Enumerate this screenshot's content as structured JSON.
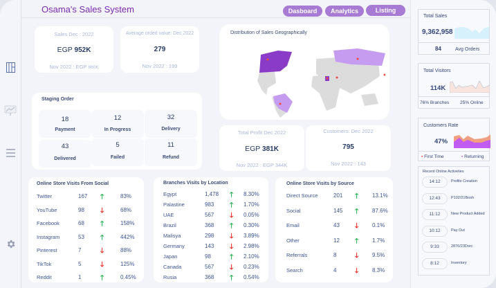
{
  "app": {
    "title": "Osama's Sales System"
  },
  "nav": [
    {
      "label": "Dasboard"
    },
    {
      "label": "Analytics"
    },
    {
      "label": "Listing"
    }
  ],
  "sidebar": {
    "icons": [
      "layout-icon",
      "presentation-chart-icon",
      "menu-icon",
      "gear-icon"
    ]
  },
  "sales": {
    "label": "Sales Dec : 2022",
    "currency": "EGP",
    "value": "952K",
    "prev": "Nov 2022 : EGP",
    "prev_value": "860K"
  },
  "avg_order": {
    "label": "Average orded value: Dec 2022",
    "value": "279",
    "prev": "Nov 2022 :  199"
  },
  "staging": {
    "title": "Staging Order",
    "items": [
      {
        "value": "18",
        "label": "Payment"
      },
      {
        "value": "12",
        "label": "In Progress"
      },
      {
        "value": "32",
        "label": "Delivery"
      },
      {
        "value": "43",
        "label": "Delivered"
      },
      {
        "value": "5",
        "label": "Failed"
      },
      {
        "value": "11",
        "label": "Refund"
      }
    ]
  },
  "map": {
    "title": "Distribution of Sales Geographically",
    "colors": {
      "high": "#8a3cc8",
      "mid": "#c59cf0",
      "base": "#dcdcdc",
      "marker": "#f04a3a"
    }
  },
  "profit": {
    "label": "Total Profit Dec 2022",
    "currency": "EGP",
    "value": "381K",
    "prev": "Nov 2022 : EGP  344K"
  },
  "customers": {
    "label": "Customers: Dec 2022",
    "value": "795",
    "prev": "Nov 2022 : 143"
  },
  "social": {
    "title": "Online Store Visits From Social",
    "rows": [
      {
        "name": "Twitter",
        "value": "167",
        "trend": "up",
        "pct": "83%"
      },
      {
        "name": "YouTube",
        "value": "98",
        "trend": "down",
        "pct": "68%"
      },
      {
        "name": "Facebook",
        "value": "68",
        "trend": "up",
        "pct": "158%"
      },
      {
        "name": "Instagram",
        "value": "53",
        "trend": "up",
        "pct": "442%"
      },
      {
        "name": "Pinterest",
        "value": "7",
        "trend": "down",
        "pct": "88%"
      },
      {
        "name": "TikTok",
        "value": "5",
        "trend": "down",
        "pct": "125%"
      },
      {
        "name": "Reddit",
        "value": "1",
        "trend": "up",
        "pct": "0.45%"
      }
    ]
  },
  "branches": {
    "title": "Branches Visits by Location",
    "rows": [
      {
        "name": "Egypt",
        "value": "1,478",
        "trend": "up",
        "pct": "8.30%"
      },
      {
        "name": "Palastine",
        "value": "983",
        "trend": "up",
        "pct": "1.70%"
      },
      {
        "name": "UAE",
        "value": "567",
        "trend": "down",
        "pct": "0.05%"
      },
      {
        "name": "Brazil",
        "value": "368",
        "trend": "up",
        "pct": "0.30%"
      },
      {
        "name": "Malisya",
        "value": "298",
        "trend": "down",
        "pct": "3.89%"
      },
      {
        "name": "Germany",
        "value": "143",
        "trend": "down",
        "pct": "2.98%"
      },
      {
        "name": "Japan",
        "value": "98",
        "trend": "up",
        "pct": "2.10%"
      },
      {
        "name": "Canada",
        "value": "567",
        "trend": "down",
        "pct": "0.23%"
      },
      {
        "name": "Rusia",
        "value": "368",
        "trend": "up",
        "pct": "0.54%"
      }
    ]
  },
  "source": {
    "title": "Online Store Visits by Source",
    "rows": [
      {
        "name": "Direct Source",
        "value": "201",
        "trend": "up",
        "pct": "13.1%"
      },
      {
        "name": "Social",
        "value": "145",
        "trend": "up",
        "pct": "87.6%"
      },
      {
        "name": "Email",
        "value": "43",
        "trend": "down",
        "pct": "0.1%"
      },
      {
        "name": "Other",
        "value": "12",
        "trend": "up",
        "pct": "1.7%"
      },
      {
        "name": "Referrals",
        "value": "8",
        "trend": "down",
        "pct": "9.5%"
      },
      {
        "name": "Search",
        "value": "4",
        "trend": "down",
        "pct": "8.3%"
      }
    ]
  },
  "total_sales": {
    "title": "Total Sales",
    "value": "9,362,958",
    "avg": "84",
    "avg_label": "Avg Orders"
  },
  "total_visitors": {
    "title": "Total Visitors",
    "value": "114K",
    "branches": "76% Branches",
    "online": "25% Online"
  },
  "customers_rate": {
    "title": "Customers Rate",
    "value": "47%",
    "first": "First Time",
    "returning": "Returning",
    "colors": {
      "first": "#f0a080",
      "returning": "#c05af0"
    }
  },
  "activities": {
    "title": "Recent Online Activeties",
    "items": [
      {
        "time": "14:12",
        "label": "Profile Creation"
      },
      {
        "time": "12:43",
        "label": "P102/21Bosh"
      },
      {
        "time": "11:12",
        "label": "New Product Added"
      },
      {
        "time": "10:12",
        "label": "Pay Out"
      },
      {
        "time": "9:33",
        "label": "2876/23Dorc"
      },
      {
        "time": "8:12",
        "label": "Inventory"
      }
    ]
  }
}
